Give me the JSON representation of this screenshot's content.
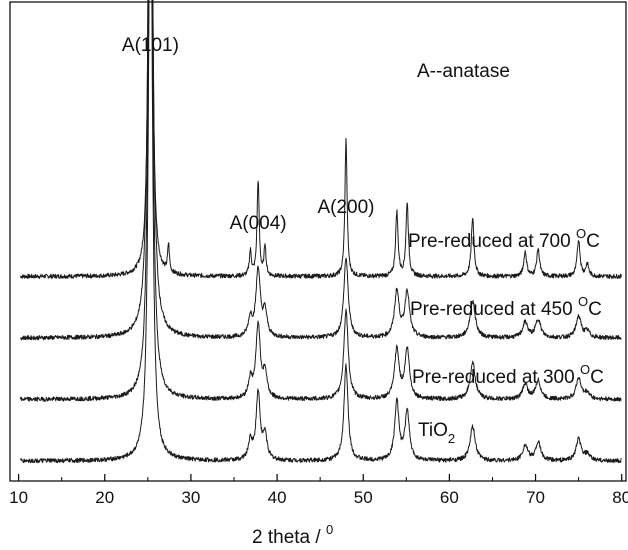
{
  "chart_data": {
    "type": "line",
    "title": "",
    "xlabel": "2 theta / ",
    "xlabel_superscript": "0",
    "ylabel": "",
    "xlim": [
      9,
      80.5
    ],
    "x_ticks": [
      10,
      20,
      30,
      40,
      50,
      60,
      70,
      80
    ],
    "y_ticks_labeled": false,
    "legend_text": "A--anatase",
    "peak_labels": [
      {
        "text": "A(101)",
        "x": 25.3
      },
      {
        "text": "A(004)",
        "x": 37.8
      },
      {
        "text": "A(200)",
        "x": 48.0
      }
    ],
    "peaks_2theta": [
      25.3,
      27.4,
      36.9,
      37.8,
      38.6,
      48.0,
      53.9,
      55.1,
      62.7,
      68.8,
      70.3,
      75.0,
      76.0
    ],
    "series": [
      {
        "name": "Pre-reduced at 700 ",
        "superscript": "O",
        "unit": "C",
        "offset": 3.0,
        "peak_heights": [
          24,
          0.45,
          0.4,
          1.55,
          0.5,
          2.25,
          1.05,
          1.2,
          0.95,
          0.4,
          0.45,
          0.6,
          0.2
        ],
        "peak_widths": [
          0.14,
          0.12,
          0.15,
          0.15,
          0.13,
          0.15,
          0.17,
          0.17,
          0.19,
          0.2,
          0.2,
          0.2,
          0.2
        ]
      },
      {
        "name": "Pre-reduced at 450 ",
        "superscript": "O",
        "unit": "C",
        "offset": 2.0,
        "peak_heights": [
          11,
          0.0,
          0.3,
          1.1,
          0.4,
          1.3,
          0.75,
          0.75,
          0.6,
          0.25,
          0.3,
          0.35,
          0.1
        ],
        "peak_widths": [
          0.28,
          0.2,
          0.28,
          0.3,
          0.28,
          0.3,
          0.32,
          0.32,
          0.36,
          0.35,
          0.35,
          0.35,
          0.35
        ]
      },
      {
        "name": "Pre-reduced at 300 ",
        "superscript": "O",
        "unit": "C",
        "offset": 1.0,
        "peak_heights": [
          11,
          0.0,
          0.3,
          1.2,
          0.4,
          1.45,
          0.8,
          0.8,
          0.6,
          0.25,
          0.3,
          0.35,
          0.1
        ],
        "peak_widths": [
          0.27,
          0.2,
          0.28,
          0.3,
          0.28,
          0.3,
          0.32,
          0.32,
          0.36,
          0.35,
          0.35,
          0.35,
          0.35
        ]
      },
      {
        "name": "TiO",
        "subscript": "2",
        "unit": "",
        "offset": 0.0,
        "peak_heights": [
          11,
          0.0,
          0.3,
          1.1,
          0.4,
          1.55,
          0.95,
          0.8,
          0.55,
          0.25,
          0.3,
          0.35,
          0.1
        ],
        "peak_widths": [
          0.25,
          0.2,
          0.28,
          0.28,
          0.28,
          0.28,
          0.3,
          0.3,
          0.36,
          0.35,
          0.35,
          0.35,
          0.35
        ]
      }
    ]
  }
}
